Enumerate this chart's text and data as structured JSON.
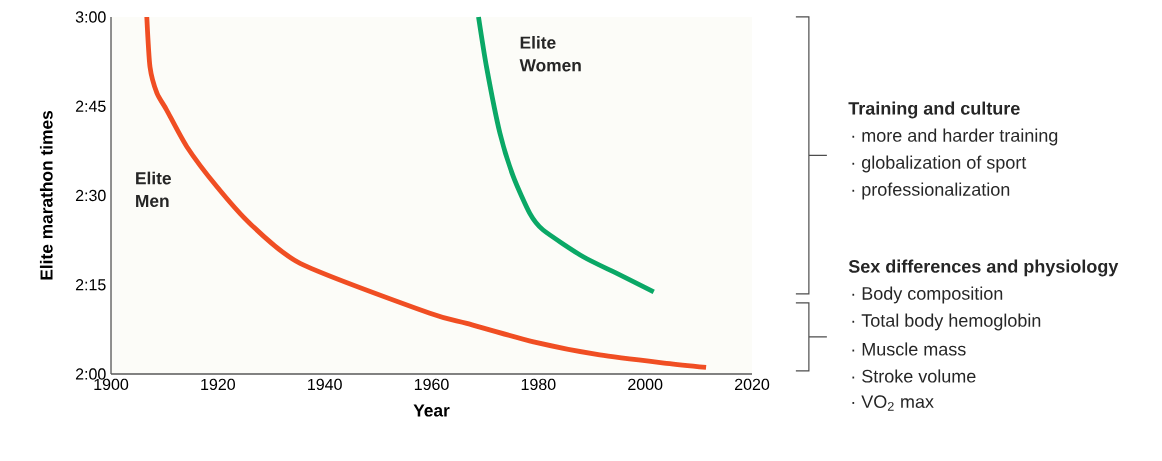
{
  "chart_data": {
    "type": "line",
    "xlabel": "Year",
    "ylabel": "Elite marathon times",
    "xlim": [
      1900,
      2020
    ],
    "ylim": [
      120,
      180
    ],
    "xticks": [
      1900,
      1920,
      1940,
      1960,
      1980,
      2000,
      2020
    ],
    "yticks": [
      {
        "value": 120,
        "label": "2:00"
      },
      {
        "value": 135,
        "label": "2:15"
      },
      {
        "value": 150,
        "label": "2:30"
      },
      {
        "value": 165,
        "label": "2:45"
      },
      {
        "value": 180,
        "label": "3:00"
      }
    ],
    "series": [
      {
        "name": "Elite Men",
        "color": "#f04e23",
        "x": [
          1906.7,
          1907.3,
          1908.6,
          1910.4,
          1914.2,
          1919.8,
          1926.0,
          1935.4,
          1959.7,
          1966.6,
          1979.1,
          1991.5,
          2004.0,
          2011.4
        ],
        "values": [
          180,
          171.6,
          167.2,
          164.4,
          158.2,
          151.5,
          145.3,
          138.6,
          130.2,
          128.5,
          125.4,
          123.2,
          121.8,
          121.1
        ]
      },
      {
        "name": "Elite Women",
        "color": "#0aa866",
        "x": [
          1968.8,
          1970.3,
          1972.8,
          1975.3,
          1978.4,
          1980.9,
          1988.4,
          1994.7,
          2001.6
        ],
        "values": [
          180,
          171.6,
          160.5,
          153.2,
          147.0,
          144.2,
          139.7,
          136.9,
          133.8
        ]
      }
    ],
    "annotations": [
      "Training and culture",
      "· more and harder training",
      "· globalization of sport",
      "· professionalization",
      "Sex differences and physiology",
      "· Body composition",
      "· Total body hemoglobin",
      "· Muscle mass",
      "· Stroke volume",
      "· VO$_{2}$ max"
    ]
  }
}
